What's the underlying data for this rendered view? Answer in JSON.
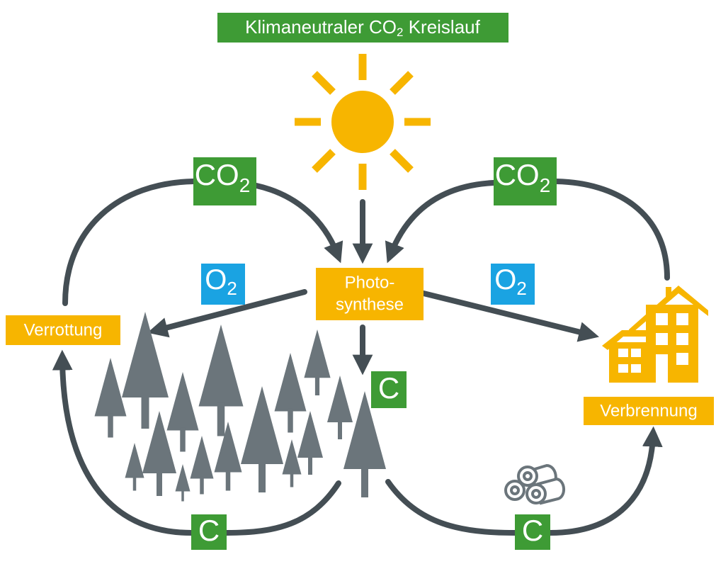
{
  "title": {
    "main": "Klimaneutraler CO",
    "sub": "2",
    "tail": " Kreislauf"
  },
  "co2_left": {
    "main": "CO",
    "sub": "2"
  },
  "co2_right": {
    "main": "CO",
    "sub": "2"
  },
  "o2_left": {
    "main": "O",
    "sub": "2"
  },
  "o2_right": {
    "main": "O",
    "sub": "2"
  },
  "photosynthese": [
    "Photo-",
    "synthese"
  ],
  "verrottung": "Verrottung",
  "verbrennung": "Verbrennung",
  "carbon": [
    "C",
    "C",
    "C"
  ]
}
